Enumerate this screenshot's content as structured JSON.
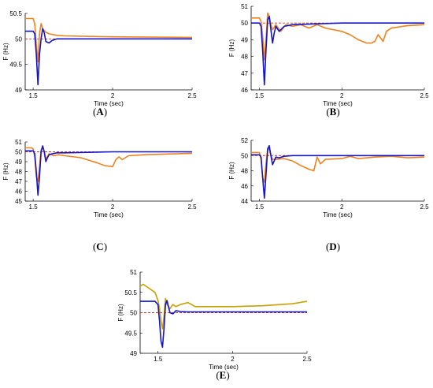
{
  "chart_data": [
    {
      "id": "A",
      "type": "line",
      "caption_letter": "A",
      "xlabel": "Time (sec)",
      "ylabel": "F (Hz)",
      "xlim": [
        1.45,
        2.5
      ],
      "ylim": [
        49,
        50.5
      ],
      "xticks": [
        1.5,
        2,
        2.5
      ],
      "yticks": [
        49,
        49.5,
        50,
        50.5
      ],
      "grid": false,
      "legend": "none",
      "reference": {
        "y": 50,
        "color": "#c0392b",
        "style": "dashed"
      },
      "series": [
        {
          "color": "#f0821e",
          "x": [
            1.45,
            1.49,
            1.5,
            1.51,
            1.52,
            1.53,
            1.54,
            1.55,
            1.56,
            1.58,
            1.6,
            1.65,
            1.7,
            2.0,
            2.5
          ],
          "y": [
            50.4,
            50.4,
            50.4,
            50.3,
            49.9,
            49.55,
            50.1,
            50.3,
            50.2,
            50.13,
            50.1,
            50.07,
            50.06,
            50.04,
            50.03
          ]
        },
        {
          "color": "#1515c8",
          "x": [
            1.45,
            1.49,
            1.5,
            1.51,
            1.52,
            1.53,
            1.54,
            1.55,
            1.56,
            1.57,
            1.58,
            1.6,
            1.62,
            1.65,
            1.7,
            2.0,
            2.5
          ],
          "y": [
            50.15,
            50.15,
            50.15,
            50.1,
            49.7,
            49.1,
            49.7,
            50.0,
            50.2,
            50.12,
            49.95,
            49.92,
            49.97,
            50.0,
            50.0,
            50.0,
            50.0
          ]
        }
      ]
    },
    {
      "id": "B",
      "type": "line",
      "caption_letter": "B",
      "xlabel": "Time (sec)",
      "ylabel": "F (Hz)",
      "xlim": [
        1.45,
        2.5
      ],
      "ylim": [
        46,
        51
      ],
      "xticks": [
        1.5,
        2,
        2.5
      ],
      "yticks": [
        46,
        47,
        48,
        49,
        50,
        51
      ],
      "grid": false,
      "legend": "none",
      "reference": {
        "y": 50,
        "color": "#c0392b",
        "style": "dashed"
      },
      "series": [
        {
          "color": "#f0821e",
          "x": [
            1.45,
            1.5,
            1.51,
            1.52,
            1.53,
            1.54,
            1.55,
            1.56,
            1.57,
            1.58,
            1.6,
            1.63,
            1.66,
            1.7,
            1.75,
            1.8,
            1.85,
            1.9,
            2.0,
            2.05,
            2.1,
            2.15,
            2.18,
            2.2,
            2.22,
            2.25,
            2.27,
            2.3,
            2.4,
            2.5
          ],
          "y": [
            50.3,
            50.3,
            50.1,
            49.2,
            47.8,
            49.0,
            50.6,
            50.4,
            49.9,
            49.6,
            49.9,
            49.5,
            49.9,
            49.8,
            49.9,
            49.7,
            49.9,
            49.7,
            49.5,
            49.3,
            49.0,
            48.8,
            48.8,
            48.9,
            49.3,
            48.9,
            49.5,
            49.7,
            49.85,
            49.9
          ]
        },
        {
          "color": "#1515c8",
          "x": [
            1.45,
            1.5,
            1.51,
            1.52,
            1.53,
            1.54,
            1.55,
            1.56,
            1.57,
            1.58,
            1.59,
            1.6,
            1.62,
            1.65,
            1.7,
            2.0,
            2.5
          ],
          "y": [
            50.0,
            50.0,
            49.8,
            48.3,
            46.3,
            48.4,
            50.2,
            50.4,
            49.6,
            48.8,
            49.4,
            49.8,
            49.5,
            49.8,
            49.9,
            50.0,
            50.0
          ]
        }
      ]
    },
    {
      "id": "C",
      "type": "line",
      "caption_letter": "C",
      "xlabel": "Time (sec)",
      "ylabel": "F (Hz)",
      "xlim": [
        1.45,
        2.5
      ],
      "ylim": [
        45,
        51
      ],
      "xticks": [
        1.5,
        2,
        2.5
      ],
      "yticks": [
        45,
        46,
        47,
        48,
        49,
        50,
        51
      ],
      "grid": false,
      "legend": "none",
      "reference": {
        "y": 50,
        "color": "#c0392b",
        "style": "dashed"
      },
      "series": [
        {
          "color": "#f0821e",
          "x": [
            1.45,
            1.49,
            1.5,
            1.51,
            1.52,
            1.53,
            1.54,
            1.55,
            1.56,
            1.57,
            1.58,
            1.6,
            1.63,
            1.66,
            1.7,
            1.8,
            1.9,
            1.95,
            2.0,
            2.02,
            2.04,
            2.06,
            2.1,
            2.2,
            2.5
          ],
          "y": [
            50.4,
            50.4,
            50.3,
            49.5,
            47.5,
            47.0,
            48.5,
            50.2,
            50.5,
            50.0,
            49.3,
            49.8,
            49.6,
            49.7,
            49.6,
            49.4,
            48.9,
            48.6,
            48.5,
            49.2,
            49.5,
            49.2,
            49.6,
            49.7,
            49.85
          ]
        },
        {
          "color": "#1515c8",
          "x": [
            1.45,
            1.5,
            1.51,
            1.52,
            1.53,
            1.54,
            1.55,
            1.56,
            1.57,
            1.58,
            1.59,
            1.6,
            1.62,
            1.65,
            1.7,
            2.0,
            2.5
          ],
          "y": [
            50.1,
            50.1,
            49.8,
            48.0,
            45.6,
            47.5,
            50.0,
            50.6,
            50.0,
            49.0,
            49.4,
            49.7,
            49.8,
            49.9,
            49.9,
            50.0,
            50.0
          ]
        }
      ]
    },
    {
      "id": "D",
      "type": "line",
      "caption_letter": "D",
      "xlabel": "Time (sec)",
      "ylabel": "F (Hz)",
      "xlim": [
        1.45,
        2.5
      ],
      "ylim": [
        44,
        52
      ],
      "xticks": [
        1.5,
        2,
        2.5
      ],
      "yticks": [
        44,
        46,
        48,
        50,
        52
      ],
      "grid": false,
      "legend": "none",
      "reference": {
        "y": 50,
        "color": "#c0392b",
        "style": "dashed"
      },
      "series": [
        {
          "color": "#f0821e",
          "x": [
            1.45,
            1.5,
            1.51,
            1.52,
            1.53,
            1.54,
            1.55,
            1.56,
            1.57,
            1.58,
            1.6,
            1.65,
            1.7,
            1.75,
            1.8,
            1.83,
            1.85,
            1.87,
            1.9,
            2.0,
            2.05,
            2.1,
            2.2,
            2.3,
            2.4,
            2.5
          ],
          "y": [
            50.4,
            50.4,
            49.5,
            47.0,
            46.5,
            49.0,
            51.0,
            50.8,
            50.0,
            49.5,
            49.5,
            49.6,
            49.3,
            48.7,
            48.2,
            48.0,
            49.8,
            48.9,
            49.5,
            49.6,
            49.9,
            49.6,
            49.8,
            49.9,
            49.7,
            49.8
          ]
        },
        {
          "color": "#1515c8",
          "x": [
            1.45,
            1.5,
            1.51,
            1.52,
            1.53,
            1.54,
            1.55,
            1.56,
            1.57,
            1.58,
            1.59,
            1.6,
            1.62,
            1.65,
            1.7,
            2.0,
            2.5
          ],
          "y": [
            50.1,
            50.1,
            49.8,
            47.0,
            44.4,
            47.5,
            50.8,
            51.3,
            50.0,
            48.8,
            49.3,
            49.8,
            49.7,
            49.9,
            50.0,
            50.0,
            50.0
          ]
        }
      ]
    },
    {
      "id": "E",
      "type": "line",
      "caption_letter": "E",
      "xlabel": "Time (sec)",
      "ylabel": "F (Hz)",
      "xlim": [
        1.38,
        2.5
      ],
      "ylim": [
        49,
        51
      ],
      "xticks": [
        1.5,
        2,
        2.5
      ],
      "yticks": [
        49,
        49.5,
        50,
        50.5,
        51
      ],
      "grid": false,
      "legend": "none",
      "reference": {
        "y": 50,
        "color": "#c0392b",
        "style": "dashed"
      },
      "series": [
        {
          "color": "#c8a000",
          "x": [
            1.38,
            1.4,
            1.42,
            1.44,
            1.46,
            1.48,
            1.5,
            1.51,
            1.52,
            1.53,
            1.54,
            1.55,
            1.56,
            1.58,
            1.6,
            1.62,
            1.65,
            1.7,
            1.75,
            1.8,
            2.0,
            2.2,
            2.4,
            2.5
          ],
          "y": [
            50.65,
            50.7,
            50.65,
            50.6,
            50.55,
            50.5,
            50.3,
            50.1,
            49.8,
            49.6,
            49.9,
            50.35,
            50.2,
            50.1,
            50.2,
            50.15,
            50.2,
            50.25,
            50.15,
            50.15,
            50.15,
            50.17,
            50.22,
            50.28
          ]
        },
        {
          "color": "#1515c8",
          "x": [
            1.38,
            1.48,
            1.5,
            1.51,
            1.52,
            1.53,
            1.54,
            1.55,
            1.56,
            1.58,
            1.6,
            1.62,
            1.65,
            1.7,
            2.0,
            2.5
          ],
          "y": [
            50.28,
            50.28,
            50.2,
            49.8,
            49.3,
            49.15,
            49.6,
            50.2,
            50.3,
            50.0,
            49.97,
            50.05,
            50.03,
            50.02,
            50.02,
            50.02
          ]
        }
      ]
    }
  ]
}
